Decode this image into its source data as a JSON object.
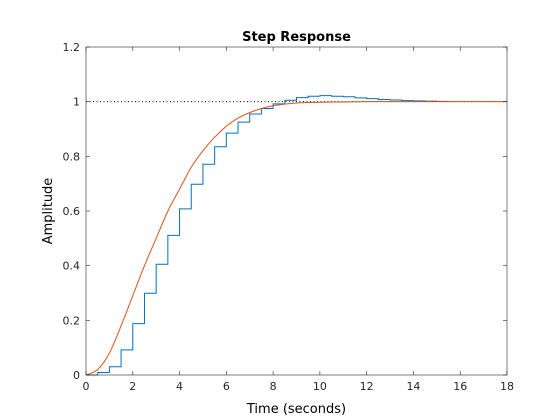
{
  "chart_data": {
    "type": "line",
    "title": "Step Response",
    "xlabel": "Time (seconds)",
    "ylabel": "Amplitude",
    "xlim": [
      0,
      18
    ],
    "ylim": [
      0,
      1.2
    ],
    "xticks": [
      0,
      2,
      4,
      6,
      8,
      10,
      12,
      14,
      16,
      18
    ],
    "yticks": [
      0,
      0.2,
      0.4,
      0.6,
      0.8,
      1,
      1.2
    ],
    "xtick_labels": [
      "0",
      "2",
      "4",
      "6",
      "8",
      "10",
      "12",
      "14",
      "16",
      "18"
    ],
    "ytick_labels": [
      "0",
      "0.2",
      "0.4",
      "0.6",
      "0.8",
      "1",
      "1.2"
    ],
    "grid": false,
    "reference_line": {
      "y": 1,
      "style": "dotted",
      "color": "#000000"
    },
    "series": [
      {
        "kind": "stairs",
        "color": "#0072BD",
        "step": 0.5,
        "x": [
          0,
          0.5,
          1,
          1.5,
          2,
          2.5,
          3,
          3.5,
          4,
          4.5,
          5,
          5.5,
          6,
          6.5,
          7,
          7.5,
          8,
          8.5,
          9,
          9.5,
          10,
          10.5,
          11,
          11.5,
          12,
          12.5,
          13,
          13.5,
          14,
          14.5,
          15
        ],
        "y": [
          0,
          0.009,
          0.03,
          0.092,
          0.188,
          0.299,
          0.405,
          0.511,
          0.608,
          0.698,
          0.771,
          0.835,
          0.885,
          0.925,
          0.955,
          0.975,
          0.992,
          1.005,
          1.015,
          1.02,
          1.022,
          1.02,
          1.018,
          1.014,
          1.011,
          1.008,
          1.006,
          1.004,
          1.003,
          1.002,
          1.001
        ]
      },
      {
        "kind": "continuous",
        "color": "#D95319",
        "x": [
          0,
          0.5,
          1,
          1.5,
          2,
          2.5,
          3,
          3.5,
          4,
          4.5,
          5,
          5.5,
          6,
          6.5,
          7,
          7.5,
          8,
          8.5,
          9,
          9.5,
          10,
          11,
          12,
          13,
          14,
          15,
          16,
          17,
          18
        ],
        "y": [
          0,
          0.02,
          0.08,
          0.18,
          0.29,
          0.4,
          0.5,
          0.6,
          0.68,
          0.76,
          0.82,
          0.87,
          0.91,
          0.94,
          0.96,
          0.975,
          0.985,
          0.991,
          0.995,
          0.997,
          0.998,
          0.999,
          1,
          1,
          1,
          1,
          1,
          1,
          1
        ]
      }
    ]
  }
}
